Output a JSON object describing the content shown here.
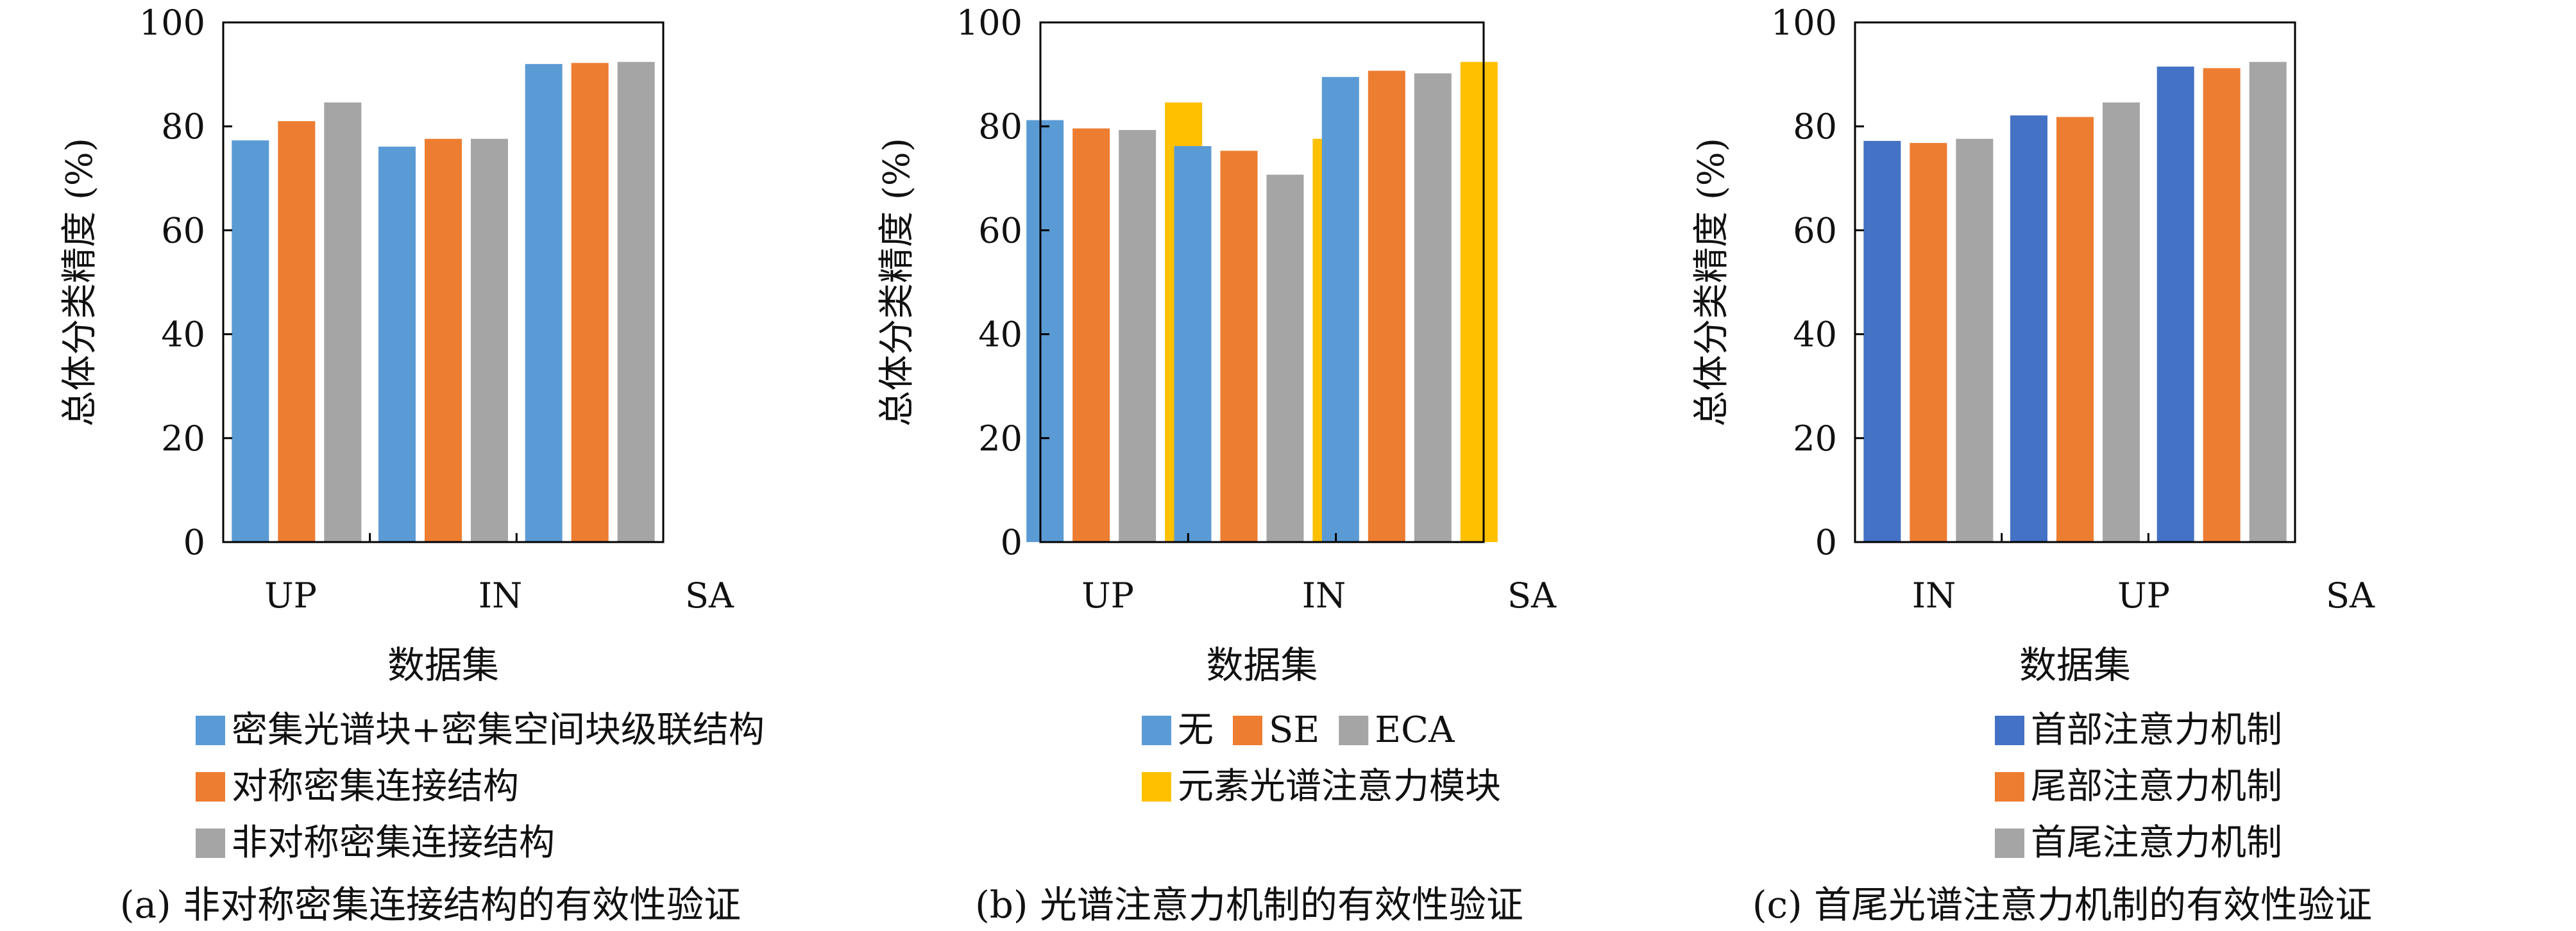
{
  "chart_data": [
    {
      "type": "bar",
      "categories": [
        "UP",
        "IN",
        "SA"
      ],
      "series": [
        {
          "name": "密集光谱块+密集空间块级联结构",
          "values": [
            77.3,
            76.1,
            92.0
          ],
          "color": "#5B9BD5"
        },
        {
          "name": "对称密集连接结构",
          "values": [
            81.0,
            77.6,
            92.2
          ],
          "color": "#ED7D31"
        },
        {
          "name": "非对称密集连接结构",
          "values": [
            84.6,
            77.6,
            92.4
          ],
          "color": "#A5A5A5"
        }
      ],
      "ylim": [
        0,
        100
      ],
      "yticks": [
        0,
        20,
        40,
        60,
        80,
        100
      ],
      "ylabel": "总体分类精度 (%)",
      "xlabel": "数据集",
      "caption": "(a) 非对称密集连接结构的有效性验证",
      "legend_position": "bottom"
    },
    {
      "type": "bar",
      "categories": [
        "UP",
        "IN",
        "SA"
      ],
      "series": [
        {
          "name": "无",
          "values": [
            81.2,
            76.2,
            89.5
          ],
          "color": "#5B9BD5"
        },
        {
          "name": "SE",
          "values": [
            79.6,
            75.3,
            90.7
          ],
          "color": "#ED7D31"
        },
        {
          "name": "ECA",
          "values": [
            79.3,
            70.7,
            90.2
          ],
          "color": "#A5A5A5"
        },
        {
          "name": "元素光谱注意力模块",
          "values": [
            84.6,
            77.6,
            92.4
          ],
          "color": "#FFC000"
        }
      ],
      "ylim": [
        0,
        100
      ],
      "yticks": [
        0,
        20,
        40,
        60,
        80,
        100
      ],
      "ylabel": "总体分类精度 (%)",
      "xlabel": "数据集",
      "caption": "(b) 光谱注意力机制的有效性验证",
      "legend_position": "bottom"
    },
    {
      "type": "bar",
      "categories": [
        "IN",
        "UP",
        "SA"
      ],
      "series": [
        {
          "name": "首部注意力机制",
          "values": [
            77.2,
            82.1,
            91.5
          ],
          "color": "#4472C4"
        },
        {
          "name": "尾部注意力机制",
          "values": [
            76.8,
            81.8,
            91.2
          ],
          "color": "#ED7D31"
        },
        {
          "name": "首尾注意力机制",
          "values": [
            77.6,
            84.6,
            92.4
          ],
          "color": "#A5A5A5"
        }
      ],
      "ylim": [
        0,
        100
      ],
      "yticks": [
        0,
        20,
        40,
        60,
        80,
        100
      ],
      "ylabel": "总体分类精度 (%)",
      "xlabel": "数据集",
      "caption": "(c) 首尾光谱注意力机制的有效性验证",
      "legend_position": "bottom"
    }
  ]
}
